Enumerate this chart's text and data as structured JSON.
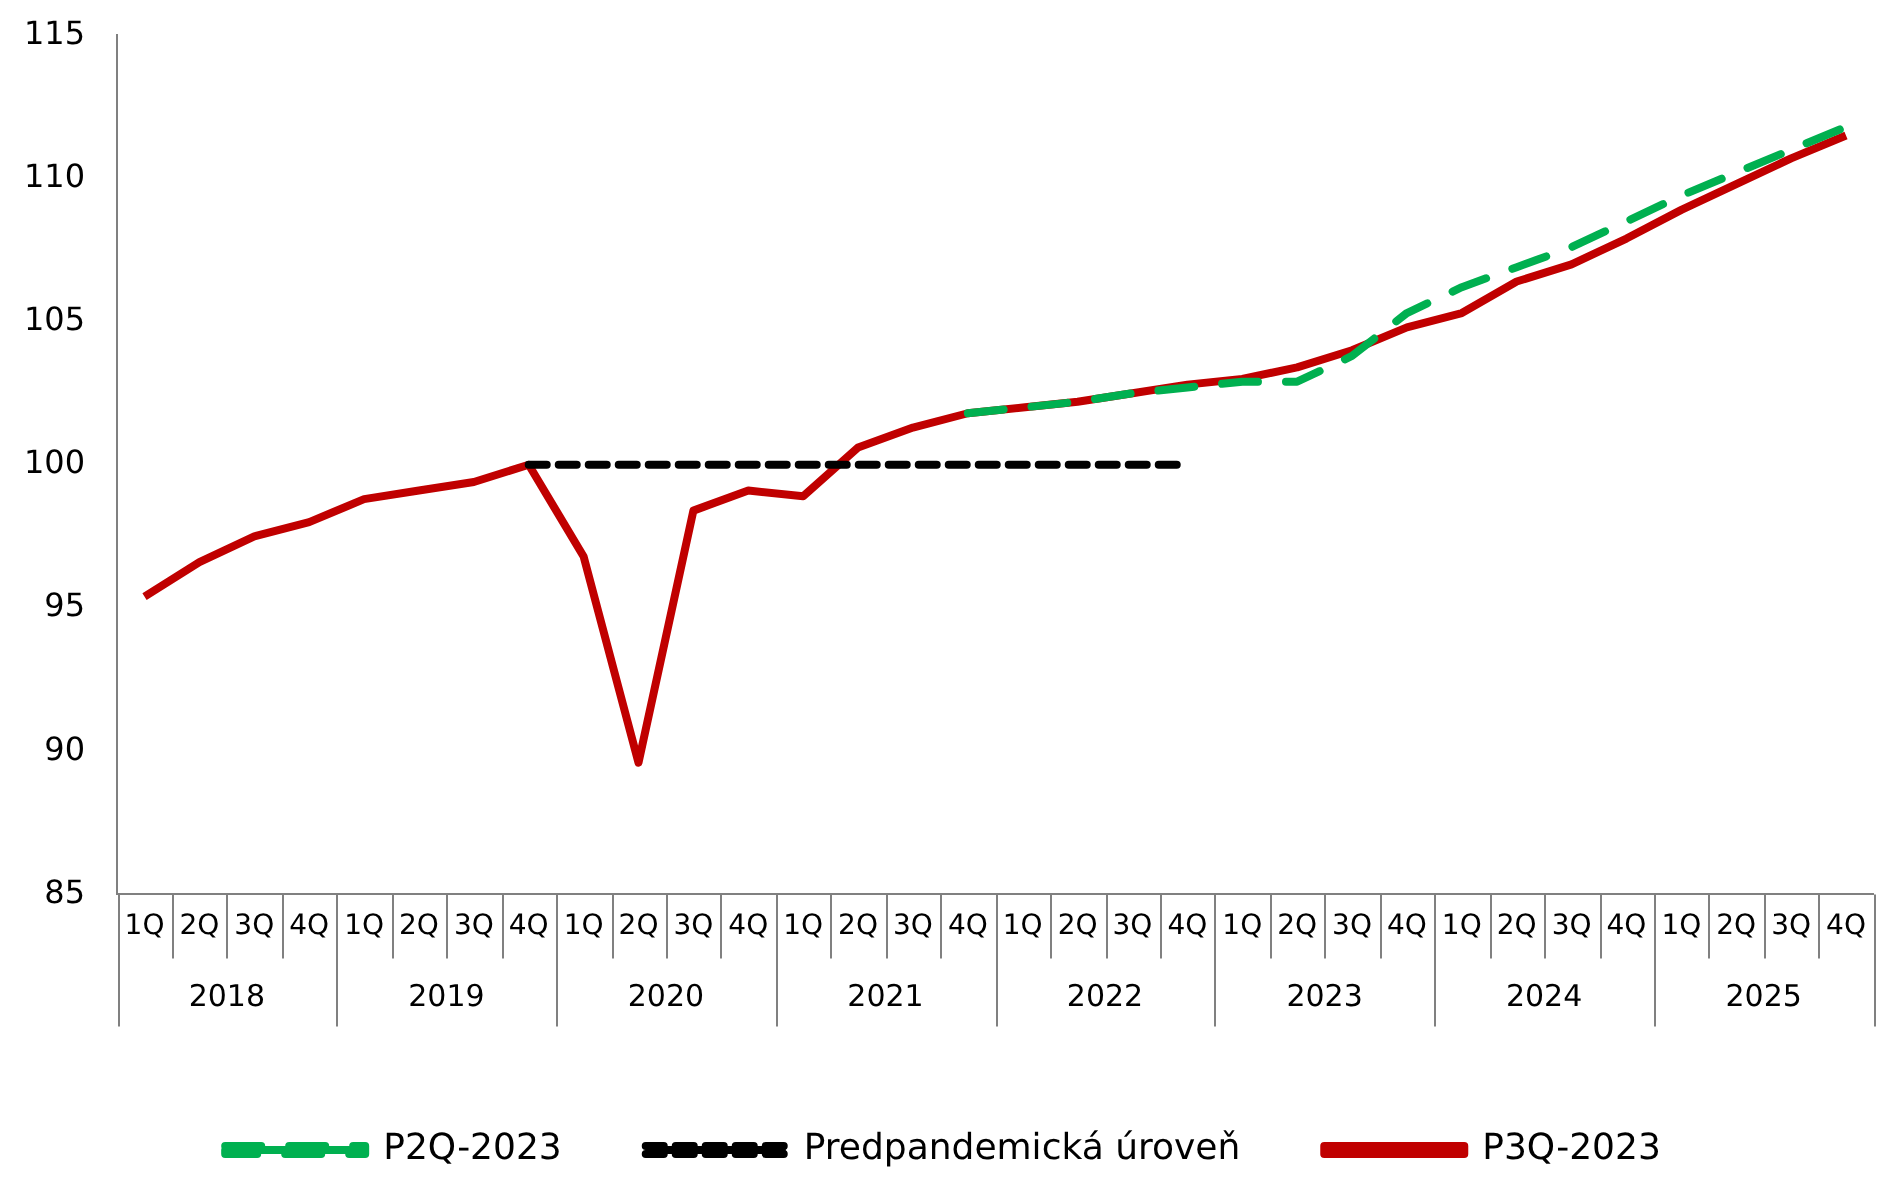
{
  "chart_data": {
    "type": "line",
    "categories": [
      "1Q",
      "2Q",
      "3Q",
      "4Q",
      "1Q",
      "2Q",
      "3Q",
      "4Q",
      "1Q",
      "2Q",
      "3Q",
      "4Q",
      "1Q",
      "2Q",
      "3Q",
      "4Q",
      "1Q",
      "2Q",
      "3Q",
      "4Q",
      "1Q",
      "2Q",
      "3Q",
      "4Q",
      "1Q",
      "2Q",
      "3Q",
      "4Q",
      "1Q",
      "2Q",
      "3Q",
      "4Q"
    ],
    "annotations": [
      "2018",
      "2019",
      "2020",
      "2021",
      "2022",
      "2023",
      "2024",
      "2025"
    ],
    "series": [
      {
        "name": "P2Q-2023",
        "color": "#00b050",
        "line_style": "dashed",
        "values": [
          null,
          null,
          null,
          null,
          null,
          null,
          null,
          null,
          null,
          null,
          null,
          null,
          null,
          null,
          null,
          101.8,
          102.0,
          102.2,
          102.5,
          102.7,
          102.9,
          102.9,
          103.8,
          105.3,
          106.2,
          106.9,
          107.6,
          108.5,
          109.4,
          110.2,
          111.0,
          111.8
        ]
      },
      {
        "name": "Predpandemická úroveň",
        "color": "#000000",
        "line_style": "dotted",
        "values": [
          null,
          null,
          null,
          null,
          null,
          null,
          null,
          100,
          100,
          100,
          100,
          100,
          100,
          100,
          100,
          100,
          100,
          100,
          100,
          100,
          null,
          null,
          null,
          null,
          null,
          null,
          null,
          null,
          null,
          null,
          null,
          null
        ]
      },
      {
        "name": "P3Q-2023",
        "color": "#c00000",
        "line_style": "solid",
        "values": [
          95.4,
          96.6,
          97.5,
          98.0,
          98.8,
          99.1,
          99.4,
          100.0,
          96.8,
          89.6,
          98.4,
          99.1,
          98.9,
          100.6,
          101.3,
          101.8,
          102.0,
          102.2,
          102.5,
          102.8,
          103.0,
          103.4,
          104.0,
          104.8,
          105.3,
          106.4,
          107.0,
          107.9,
          108.9,
          109.8,
          110.7,
          111.5
        ]
      }
    ],
    "ylim": [
      85,
      115
    ],
    "yticks": [
      85,
      90,
      95,
      100,
      105,
      110,
      115
    ],
    "legend": "bottom",
    "marker": "none"
  }
}
